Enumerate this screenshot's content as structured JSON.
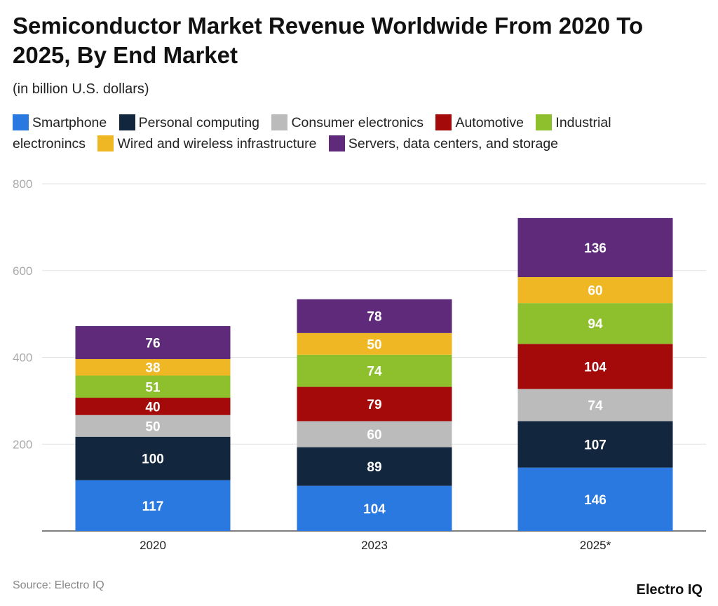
{
  "chart_data": {
    "type": "stacked-bar",
    "title": "Semiconductor Market Revenue Worldwide From 2020 To 2025, By End Market",
    "subtitle": "(in billion U.S. dollars)",
    "categories": [
      "2020",
      "2023",
      "2025*"
    ],
    "ylim": [
      0,
      800
    ],
    "yticks": [
      "200",
      "400",
      "600",
      "800"
    ],
    "ytick_values": [
      200,
      400,
      600,
      800
    ],
    "grid": true,
    "legend_placement": "top",
    "series": [
      {
        "name": "Smartphone",
        "color": "#2a79e0",
        "values": [
          117,
          104,
          146
        ]
      },
      {
        "name": "Personal computing",
        "color": "#12263d",
        "values": [
          100,
          89,
          107
        ]
      },
      {
        "name": "Consumer electronics",
        "color": "#bbbbbb",
        "values": [
          50,
          60,
          74
        ]
      },
      {
        "name": "Automotive",
        "color": "#a50a0a",
        "values": [
          40,
          79,
          104
        ]
      },
      {
        "name": "Industrial electronincs",
        "color": "#8dc02c",
        "values": [
          51,
          74,
          94
        ]
      },
      {
        "name": "Wired and wireless infrastructure",
        "color": "#efb724",
        "values": [
          38,
          50,
          60
        ]
      },
      {
        "name": "Servers, data centers, and storage",
        "color": "#5e2a79",
        "values": [
          76,
          78,
          136
        ]
      }
    ]
  },
  "footer": {
    "source": "Source: Electro IQ",
    "logo": "Electro IQ"
  }
}
